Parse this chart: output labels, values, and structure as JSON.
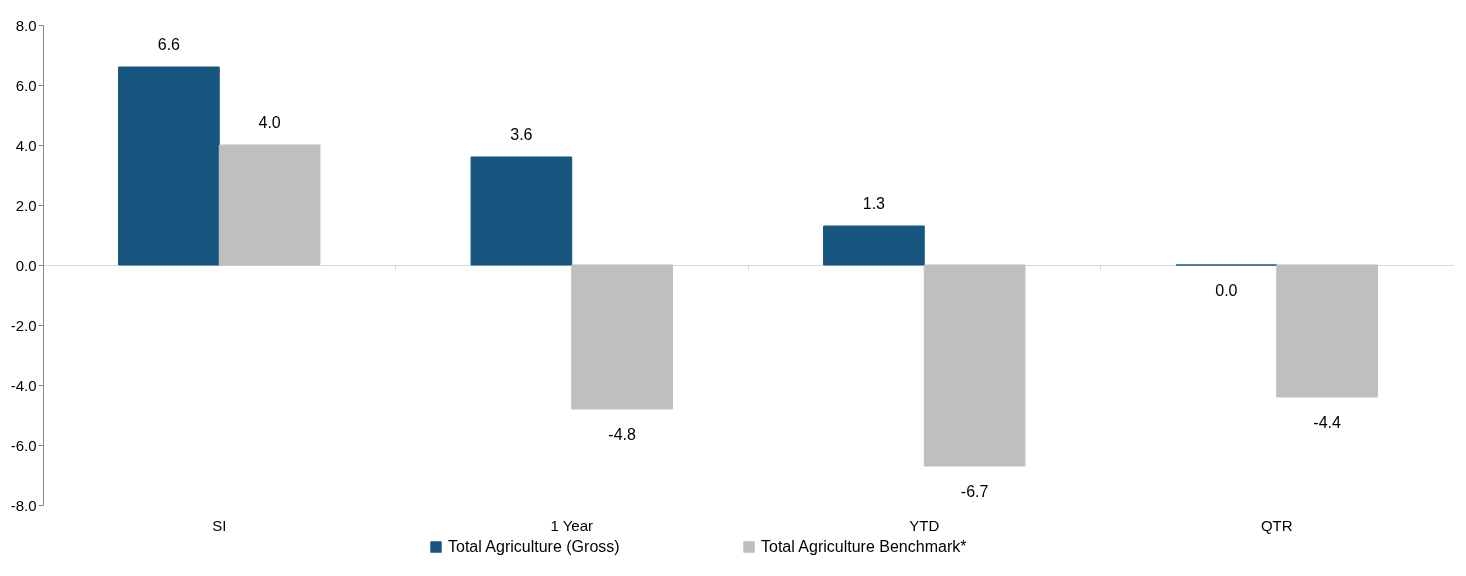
{
  "chart_data": {
    "type": "bar",
    "categories": [
      "SI",
      "1 Year",
      "YTD",
      "QTR"
    ],
    "series": [
      {
        "name": "Total Agriculture (Gross)",
        "color": "#17577f",
        "values": [
          6.6,
          3.6,
          1.3,
          0.0
        ],
        "value_labels": [
          "6.6",
          "3.6",
          "1.3",
          "0.0"
        ]
      },
      {
        "name": "Total Agriculture Benchmark*",
        "color": "#bfbfbf",
        "values": [
          4.0,
          -4.8,
          -6.7,
          -4.4
        ],
        "value_labels": [
          "4.0",
          "-4.8",
          "-6.7",
          "-4.4"
        ]
      }
    ],
    "ylim": [
      -8,
      8
    ],
    "yticks": [
      {
        "value": -8,
        "label": "-8.0"
      },
      {
        "value": -6,
        "label": "-6.0"
      },
      {
        "value": -4,
        "label": "-4.0"
      },
      {
        "value": -2,
        "label": "-2.0"
      },
      {
        "value": 0,
        "label": "0.0"
      },
      {
        "value": 2,
        "label": "2.0"
      },
      {
        "value": 4,
        "label": "4.0"
      },
      {
        "value": 6,
        "label": "6.0"
      },
      {
        "value": 8,
        "label": "8.0"
      }
    ],
    "legend": "bottom"
  }
}
